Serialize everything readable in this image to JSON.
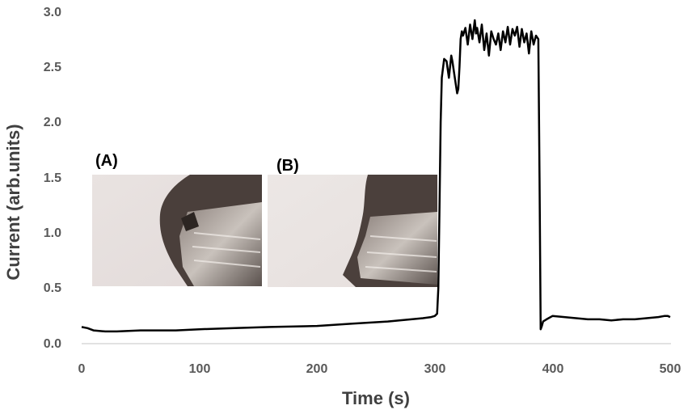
{
  "chart_data": {
    "type": "line",
    "title": "",
    "xlabel": "Time (s)",
    "ylabel": "Current (arb.units)",
    "xlim": [
      0,
      500
    ],
    "ylim": [
      0.0,
      3.0
    ],
    "x_ticks": [
      0,
      100,
      200,
      300,
      400,
      500
    ],
    "x_tick_labels": [
      "0",
      "100",
      "200",
      "300",
      "400",
      "500"
    ],
    "y_ticks": [
      0.0,
      0.5,
      1.0,
      1.5,
      2.0,
      2.5,
      3.0
    ],
    "y_tick_labels": [
      "0.0",
      "0.5",
      "1.0",
      "1.5",
      "2.0",
      "2.5",
      "3.0"
    ],
    "grid": false,
    "legend": "none",
    "line_color": "#000000",
    "series": [
      {
        "x": [
          0,
          5,
          10,
          20,
          30,
          50,
          80,
          100,
          130,
          160,
          200,
          230,
          260,
          280,
          290,
          297,
          300,
          302,
          303,
          304,
          305,
          306,
          308,
          310,
          312,
          314,
          315,
          317,
          319,
          320,
          321,
          322,
          323,
          324,
          326,
          328,
          330,
          332,
          334,
          335,
          336,
          338,
          340,
          342,
          344,
          346,
          348,
          350,
          352,
          354,
          356,
          358,
          360,
          362,
          364,
          366,
          368,
          370,
          372,
          374,
          376,
          378,
          380,
          382,
          384,
          386,
          388,
          389,
          390,
          391,
          392,
          395,
          400,
          410,
          420,
          430,
          440,
          450,
          460,
          470,
          480,
          490,
          495,
          498,
          500
        ],
        "y": [
          0.15,
          0.14,
          0.12,
          0.11,
          0.11,
          0.12,
          0.12,
          0.13,
          0.14,
          0.15,
          0.16,
          0.18,
          0.2,
          0.22,
          0.23,
          0.24,
          0.25,
          0.27,
          0.5,
          1.2,
          2.0,
          2.4,
          2.57,
          2.55,
          2.4,
          2.6,
          2.55,
          2.4,
          2.26,
          2.3,
          2.5,
          2.75,
          2.82,
          2.78,
          2.85,
          2.7,
          2.88,
          2.75,
          2.92,
          2.8,
          2.85,
          2.72,
          2.88,
          2.65,
          2.8,
          2.6,
          2.82,
          2.75,
          2.7,
          2.8,
          2.65,
          2.82,
          2.72,
          2.86,
          2.7,
          2.84,
          2.78,
          2.86,
          2.68,
          2.84,
          2.72,
          2.8,
          2.62,
          2.82,
          2.7,
          2.78,
          2.75,
          1.5,
          0.13,
          0.16,
          0.2,
          0.22,
          0.25,
          0.24,
          0.23,
          0.22,
          0.22,
          0.21,
          0.22,
          0.22,
          0.23,
          0.24,
          0.25,
          0.25,
          0.24
        ]
      }
    ],
    "annotations": [
      "(A)",
      "(B)"
    ]
  },
  "insets": [
    {
      "label": "(A)",
      "image": "micrograph-tip-before"
    },
    {
      "label": "(B)",
      "image": "micrograph-tip-after"
    }
  ]
}
